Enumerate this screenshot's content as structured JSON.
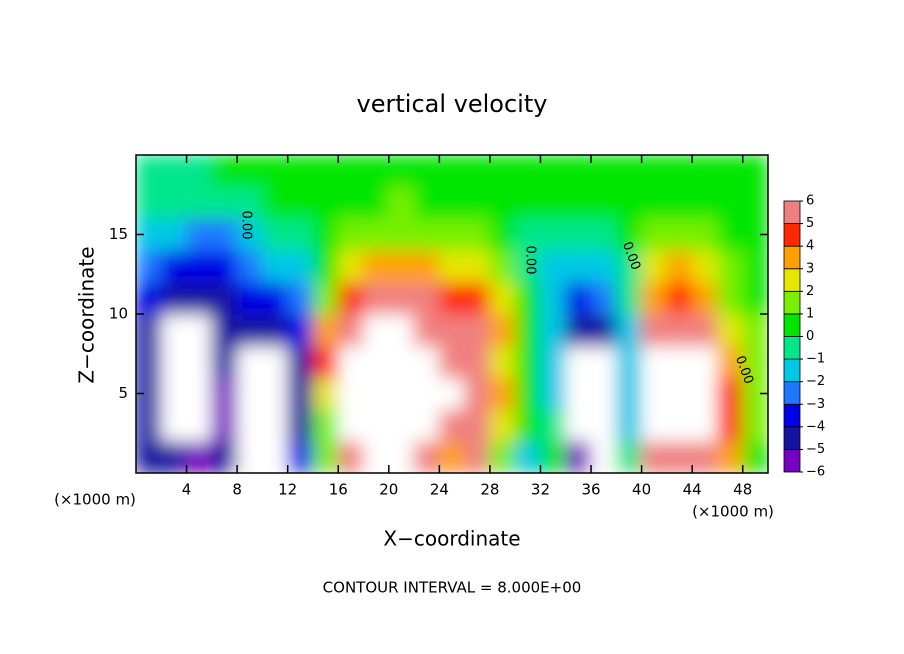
{
  "chart_data": {
    "type": "heatmap",
    "title": "vertical velocity",
    "x_label": "X−coordinate",
    "y_label": "Z−coordinate",
    "x_unit": "(×1000 m)",
    "y_unit": "(×1000 m)",
    "footer": "CONTOUR INTERVAL = 8.000E+00",
    "contour_label": "0.00",
    "xlim": [
      0,
      50
    ],
    "ylim": [
      0,
      20
    ],
    "xticks": [
      4,
      8,
      12,
      16,
      20,
      24,
      28,
      32,
      36,
      40,
      44,
      48
    ],
    "yticks": [
      5,
      10,
      15
    ],
    "x": [
      1,
      3,
      5,
      7,
      9,
      11,
      13,
      15,
      17,
      19,
      21,
      23,
      25,
      27,
      29,
      31,
      33,
      35,
      37,
      39,
      41,
      43,
      45,
      47,
      49
    ],
    "y": [
      1,
      3,
      5,
      7,
      9,
      11,
      13,
      15,
      17,
      19
    ],
    "values": [
      [
        -5,
        -5,
        -5,
        -5,
        -5,
        -4,
        -3,
        -2,
        -1,
        -1
      ],
      [
        -5,
        -10,
        -10,
        -10,
        -7,
        -5,
        -4,
        -2,
        -1,
        -1
      ],
      [
        -6,
        -10,
        -10,
        -10,
        -8,
        -5,
        -4,
        -3,
        -1,
        -1
      ],
      [
        -5,
        -6,
        -6,
        -5,
        -5,
        -5,
        -4,
        -3,
        -1,
        0
      ],
      [
        -8,
        -10,
        -10,
        -9,
        -5,
        -4,
        -3,
        -2,
        -1,
        0
      ],
      [
        -10,
        -10,
        -10,
        -7,
        -5,
        -4,
        -2,
        -1,
        0,
        0
      ],
      [
        -4,
        -5,
        -5,
        -5,
        -4,
        -3,
        -2,
        -1,
        0,
        0
      ],
      [
        1,
        1,
        2,
        4,
        3,
        1,
        0,
        0,
        0,
        0
      ],
      [
        6,
        7,
        8,
        9,
        6,
        4,
        2,
        1,
        0,
        0
      ],
      [
        10,
        10,
        10,
        10,
        8,
        5,
        3,
        1,
        0,
        0
      ],
      [
        10,
        10,
        10,
        10,
        9,
        5,
        3,
        1,
        1,
        0
      ],
      [
        6,
        10,
        10,
        9,
        6,
        5,
        3,
        1,
        0,
        0
      ],
      [
        3,
        6,
        7,
        6,
        5,
        4,
        2,
        1,
        0,
        0
      ],
      [
        5,
        6,
        6,
        5,
        6,
        4,
        2,
        1,
        0,
        0
      ],
      [
        1,
        2,
        3,
        2,
        3,
        2,
        1,
        0,
        0,
        0
      ],
      [
        -2,
        0,
        0,
        0,
        0,
        0,
        -1,
        -1,
        0,
        0
      ],
      [
        0,
        -1,
        -2,
        -2,
        -2,
        -2,
        -2,
        -1,
        0,
        0
      ],
      [
        -6,
        -10,
        -10,
        -8,
        -5,
        -4,
        -2,
        -1,
        0,
        0
      ],
      [
        -8,
        -10,
        -10,
        -9,
        -5,
        -3,
        -2,
        -1,
        0,
        0
      ],
      [
        -1,
        -2,
        -2,
        -2,
        -2,
        -1,
        -1,
        0,
        0,
        0
      ],
      [
        5,
        7,
        9,
        8,
        5,
        3,
        2,
        1,
        0,
        0
      ],
      [
        6,
        9,
        10,
        10,
        6,
        4,
        3,
        1,
        0,
        0
      ],
      [
        5,
        7,
        8,
        7,
        5,
        3,
        2,
        1,
        0,
        0
      ],
      [
        3,
        4,
        4,
        3,
        2,
        1,
        1,
        0,
        0,
        0
      ],
      [
        0,
        1,
        1,
        1,
        1,
        0,
        0,
        0,
        0,
        0
      ]
    ],
    "colorbar": {
      "ticks": [
        {
          "value": -6,
          "label": "−6"
        },
        {
          "value": -5,
          "label": "−5"
        },
        {
          "value": -4,
          "label": "−4"
        },
        {
          "value": -3,
          "label": "−3"
        },
        {
          "value": -2,
          "label": "−2"
        },
        {
          "value": -1,
          "label": "−1"
        },
        0,
        1,
        2,
        3,
        4,
        5,
        6
      ],
      "colors": [
        "#7800c0",
        "#1414a0",
        "#0000e6",
        "#1e78ff",
        "#00c8e6",
        "#00e68c",
        "#00e600",
        "#78f000",
        "#e6e600",
        "#ffa000",
        "#ff2800",
        "#f08080"
      ]
    }
  }
}
